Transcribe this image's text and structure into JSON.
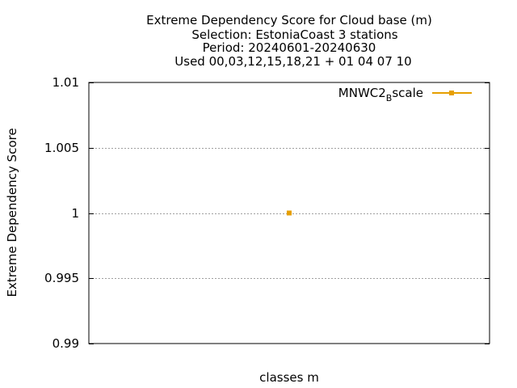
{
  "chart_data": {
    "type": "line",
    "title_lines": [
      "Extreme Dependency Score  for Cloud base (m)",
      "Selection: EstoniaCoast      3 stations",
      "Period: 20240601-20240630",
      "Used 00,03,12,15,18,21 + 01 04 07 10"
    ],
    "xlabel": "classes m",
    "ylabel": "Extreme Dependency Score",
    "ylim": [
      0.99,
      1.01
    ],
    "yticks": [
      {
        "value": 0.99,
        "label": "0.99"
      },
      {
        "value": 0.995,
        "label": "0.995"
      },
      {
        "value": 1.0,
        "label": "1"
      },
      {
        "value": 1.005,
        "label": "1.005"
      },
      {
        "value": 1.01,
        "label": "1.01"
      }
    ],
    "grid": true,
    "legend_position": "top-right",
    "series": [
      {
        "name_main": "MNWC2",
        "name_sub": "B",
        "name_rest": "scale",
        "color": "#e69f00",
        "points": [
          {
            "x_frac": 0.5,
            "y": 1.0
          }
        ]
      }
    ]
  }
}
